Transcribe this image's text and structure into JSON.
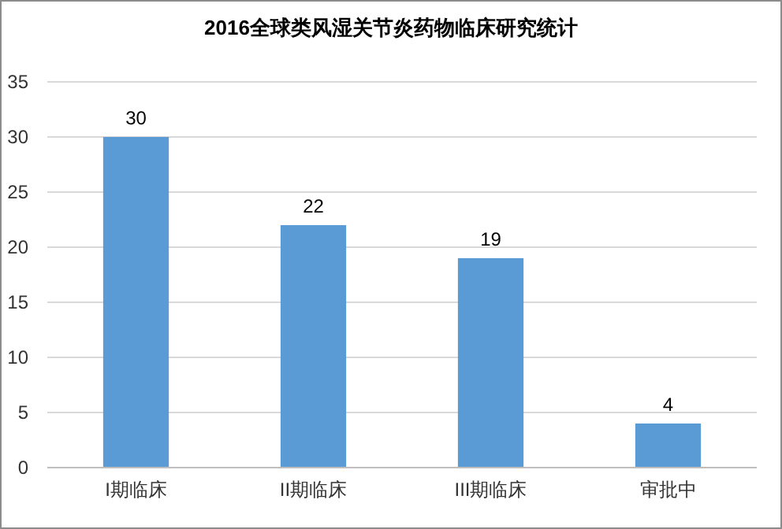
{
  "chart_data": {
    "type": "bar",
    "title": "2016全球类风湿关节炎药物临床研究统计",
    "categories": [
      "I期临床",
      "II期临床",
      "III期临床",
      "审批中"
    ],
    "values": [
      30,
      22,
      19,
      4
    ],
    "color": "#5b9bd5",
    "ylim": [
      0,
      35
    ],
    "yticks": [
      0,
      5,
      10,
      15,
      20,
      25,
      30,
      35
    ],
    "grid": "y",
    "data_labels": true
  }
}
